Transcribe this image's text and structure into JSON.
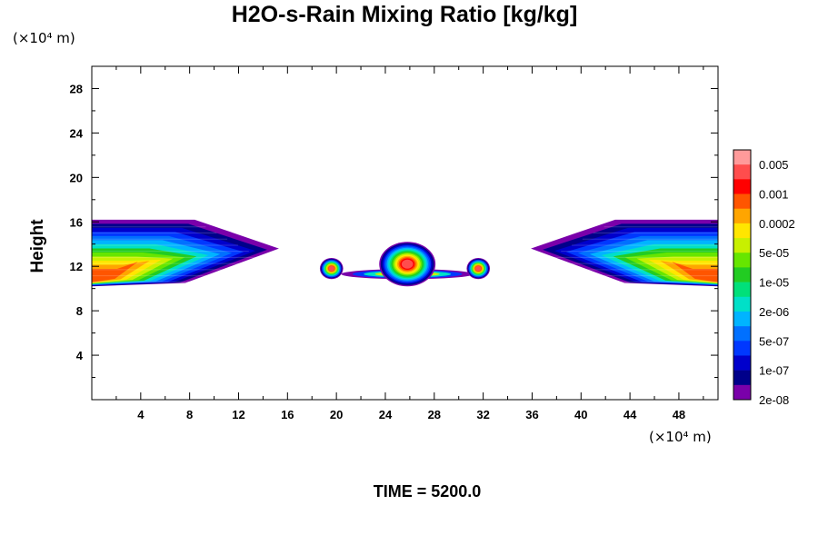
{
  "title": "H2O-s-Rain Mixing Ratio [kg/kg]",
  "y_unit": "(×10⁴ m)",
  "x_unit": "(×10⁴ m)",
  "ylabel": "Height",
  "footer": "TIME = 5200.0",
  "chart_data": {
    "type": "heatmap",
    "title": "H2O-s-Rain Mixing Ratio [kg/kg]",
    "xlabel": "",
    "ylabel": "Height",
    "x_unit": "(×10⁴ m)",
    "y_unit": "(×10⁴ m)",
    "xlim": [
      0,
      51.2
    ],
    "ylim": [
      0,
      30
    ],
    "x_ticks": [
      4,
      8,
      12,
      16,
      20,
      24,
      28,
      32,
      36,
      40,
      44,
      48
    ],
    "y_ticks": [
      4,
      8,
      12,
      16,
      20,
      24,
      28
    ],
    "grid": false,
    "legend_position": "right",
    "colorbar_labels": [
      "0.005",
      "0.001",
      "0.0002",
      "5e-05",
      "1e-05",
      "2e-06",
      "5e-07",
      "1e-07",
      "2e-08"
    ],
    "colorbar_colors": [
      "#ff9a9a",
      "#ff4d4d",
      "#ff0000",
      "#ff5500",
      "#ffa500",
      "#ffe600",
      "#c8f000",
      "#66e600",
      "#22cc22",
      "#00e07a",
      "#00e0c8",
      "#00b4ff",
      "#0070ff",
      "#0038ff",
      "#0000cc",
      "#00008a",
      "#7a00aa"
    ],
    "features": [
      {
        "region": "left anvil",
        "x": [
          0,
          15.2
        ],
        "height": [
          10.2,
          16.2
        ]
      },
      {
        "region": "central core",
        "x": [
          19.1,
          32.8
        ],
        "height": [
          10.2,
          14.2
        ]
      },
      {
        "region": "right anvil",
        "x": [
          36,
          51.2
        ],
        "height": [
          10.2,
          16.2
        ]
      }
    ],
    "time": 5200.0
  }
}
